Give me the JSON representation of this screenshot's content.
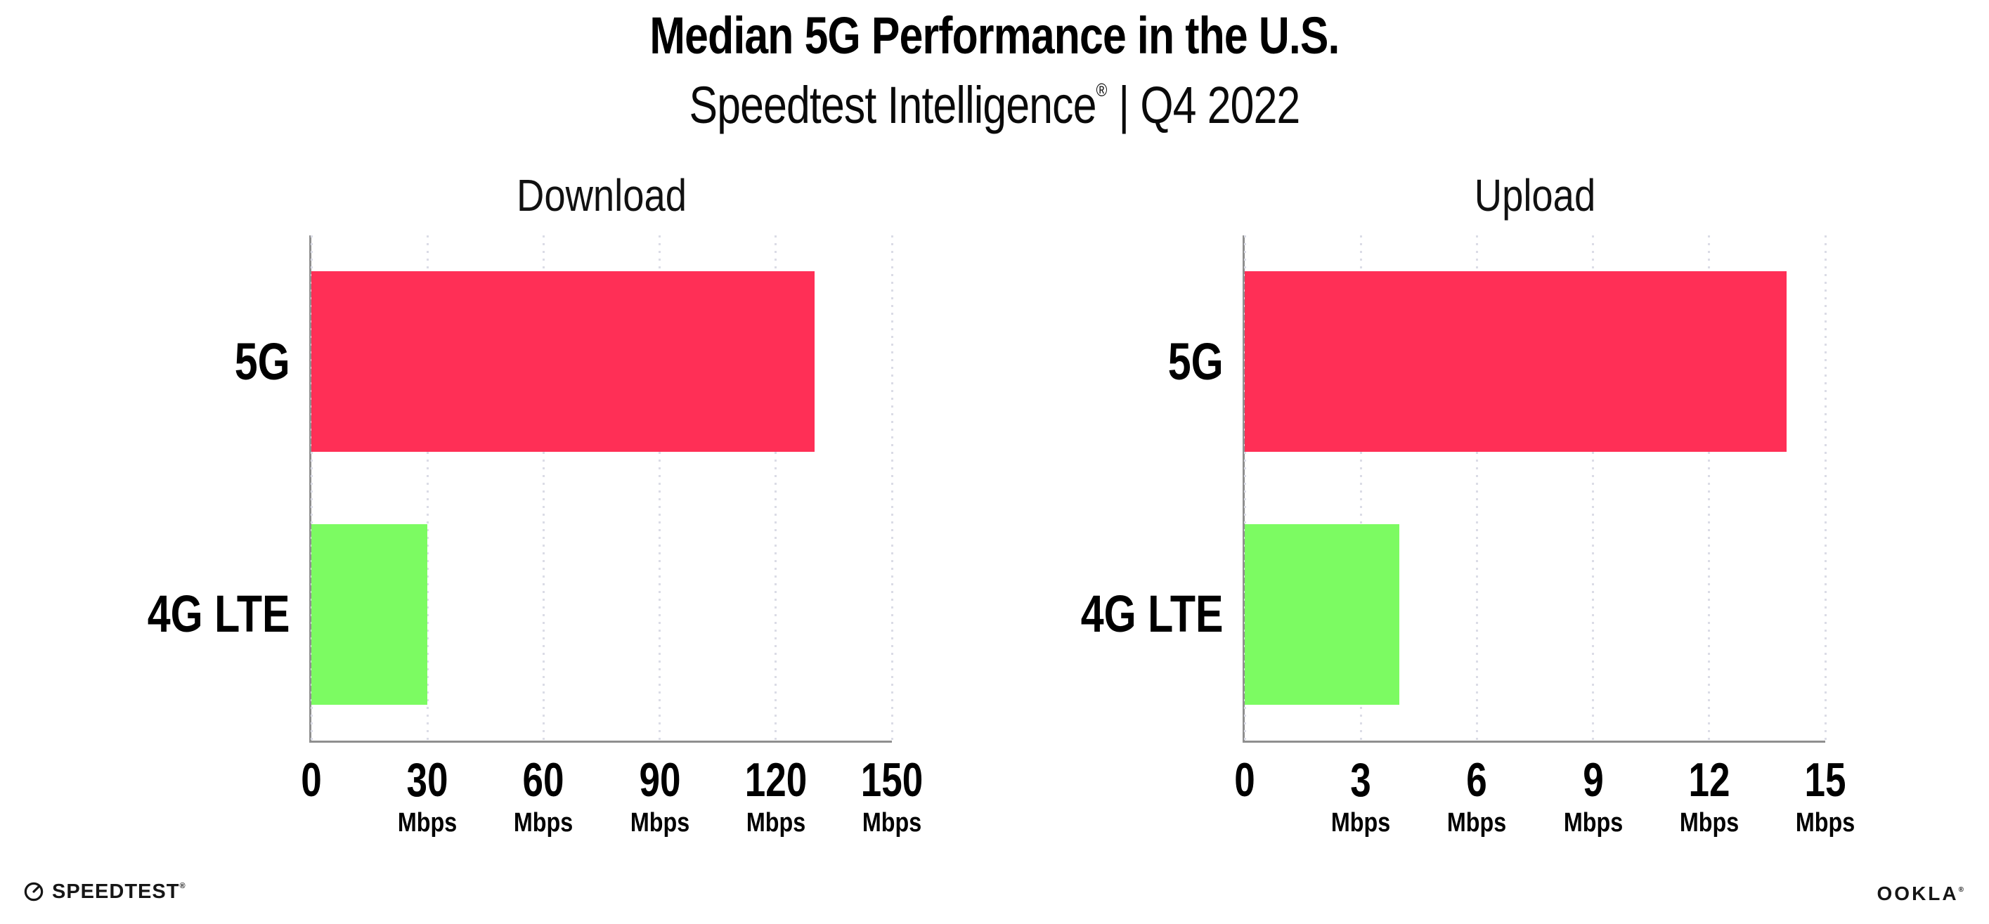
{
  "header": {
    "title": "Median 5G Performance in the U.S.",
    "subtitle_brand": "Speedtest Intelligence",
    "subtitle_reg": "®",
    "subtitle_rest": " | Q4 2022"
  },
  "colors": {
    "bar_5g": "#FF2F56",
    "bar_4g_lte": "#7CFB62",
    "axis": "#8F8F8F",
    "gridline_dots": "#DBDCE6",
    "text": "#000000"
  },
  "chart_data": [
    {
      "type": "bar",
      "orientation": "horizontal",
      "title": "Download",
      "categories": [
        "5G",
        "4G LTE"
      ],
      "values": [
        130,
        30
      ],
      "unit": "Mbps",
      "xlim": [
        0,
        150
      ],
      "ticks": [
        0,
        30,
        60,
        90,
        120,
        150
      ],
      "tick_unit_label": "Mbps",
      "grid": "dotted-vertical",
      "legend": "none"
    },
    {
      "type": "bar",
      "orientation": "horizontal",
      "title": "Upload",
      "categories": [
        "5G",
        "4G LTE"
      ],
      "values": [
        14,
        4
      ],
      "unit": "Mbps",
      "xlim": [
        0,
        15
      ],
      "ticks": [
        0,
        3,
        6,
        9,
        12,
        15
      ],
      "tick_unit_label": "Mbps",
      "grid": "dotted-vertical",
      "legend": "none"
    }
  ],
  "footer": {
    "speedtest_logo_text": "SPEEDTEST",
    "speedtest_reg": "®",
    "ookla_logo_text": "OOKLA",
    "ookla_reg": "®"
  }
}
